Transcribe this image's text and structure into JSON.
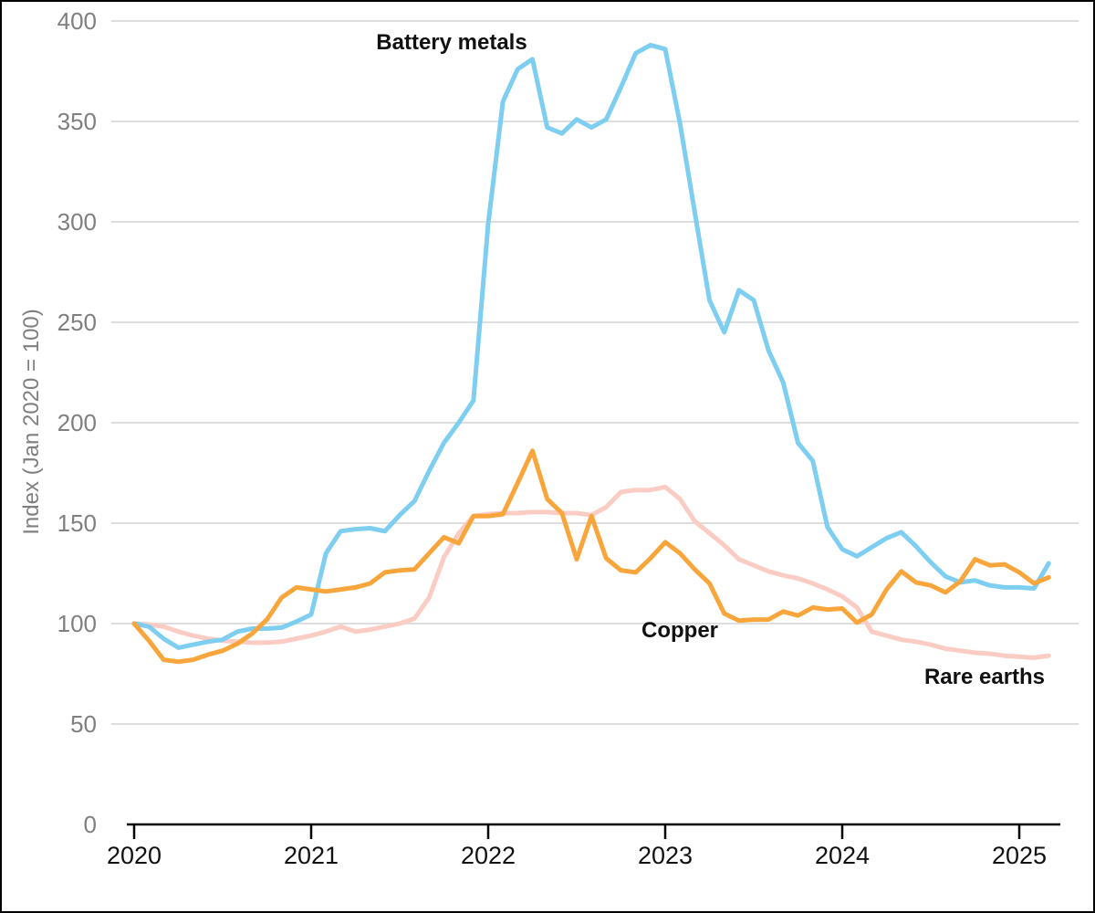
{
  "chart_data": {
    "type": "line",
    "title": "",
    "ylabel": "Index (Jan 2020 = 100)",
    "xlabel": "",
    "ylim": [
      0,
      400
    ],
    "yticks": [
      0,
      50,
      100,
      150,
      200,
      250,
      300,
      350,
      400
    ],
    "xticks": [
      "2020",
      "2021",
      "2022",
      "2023",
      "2024",
      "2025"
    ],
    "x_frequency": "monthly",
    "x_start": "2020-01",
    "x_end": "2025-03",
    "grid": "horizontal-only",
    "legend": "direct-line-labels",
    "series": [
      {
        "name": "Rare earths",
        "color": "#FACCC4",
        "values": [
          100,
          99.5,
          98.5,
          96,
          94,
          92.5,
          91.5,
          91,
          90.5,
          90.5,
          91,
          92.5,
          94,
          96,
          98.5,
          96,
          97,
          98.5,
          100,
          102.5,
          113,
          133,
          145,
          153.5,
          154.5,
          155,
          155,
          155.5,
          155.5,
          155,
          155,
          154,
          158,
          165.5,
          166.5,
          166.5,
          168,
          162,
          151,
          145,
          139,
          132,
          129,
          126,
          124,
          122.5,
          120,
          117,
          113.5,
          108,
          96,
          94,
          92,
          91,
          89.5,
          87.5,
          86.5,
          85.5,
          85,
          84,
          83.5,
          83,
          84
        ]
      },
      {
        "name": "Battery metals",
        "color": "#7DCEF0",
        "values": [
          100,
          98.5,
          92.5,
          88,
          89.5,
          91,
          92,
          96,
          97.5,
          97.5,
          98,
          101,
          104.5,
          135,
          146,
          147,
          147.5,
          146,
          154,
          161,
          176,
          190,
          200,
          211,
          299,
          360,
          376,
          381,
          347,
          344,
          351,
          347,
          351,
          367,
          384,
          388,
          386,
          349,
          305,
          261,
          245,
          266,
          261,
          236,
          220,
          190,
          181,
          148,
          137,
          133.5,
          138,
          142.5,
          145.5,
          138.5,
          130.5,
          123.5,
          120.5,
          121.5,
          119,
          118,
          118,
          117.5,
          130
        ]
      },
      {
        "name": "Copper",
        "color": "#F8A63C",
        "values": [
          100,
          91.5,
          82,
          81,
          82,
          84.5,
          86.5,
          90,
          95,
          102,
          113,
          118,
          117,
          116,
          117,
          118,
          120,
          125.5,
          126.5,
          127,
          135,
          143,
          140,
          153.5,
          153.5,
          154.5,
          170,
          186,
          162,
          155,
          132,
          153.5,
          132.5,
          126.5,
          125.5,
          132.5,
          140.5,
          135,
          127,
          120,
          105,
          101.5,
          102,
          102,
          106,
          104,
          108,
          107,
          107.5,
          100.5,
          104.5,
          117,
          126,
          120.5,
          119,
          115.5,
          121,
          132,
          129,
          129.5,
          125.5,
          120,
          123
        ]
      }
    ],
    "annotations": [
      {
        "text": "Battery metals",
        "series": "Battery metals"
      },
      {
        "text": "Copper",
        "series": "Copper"
      },
      {
        "text": "Rare earths",
        "series": "Rare earths"
      }
    ],
    "colors": {
      "gridline": "#DEDEDE",
      "axis": "#000000",
      "y_tick_text": "#7f7f7f",
      "x_tick_text": "#111111",
      "annotation_text": "#111111",
      "frame_border": "#000000"
    }
  }
}
